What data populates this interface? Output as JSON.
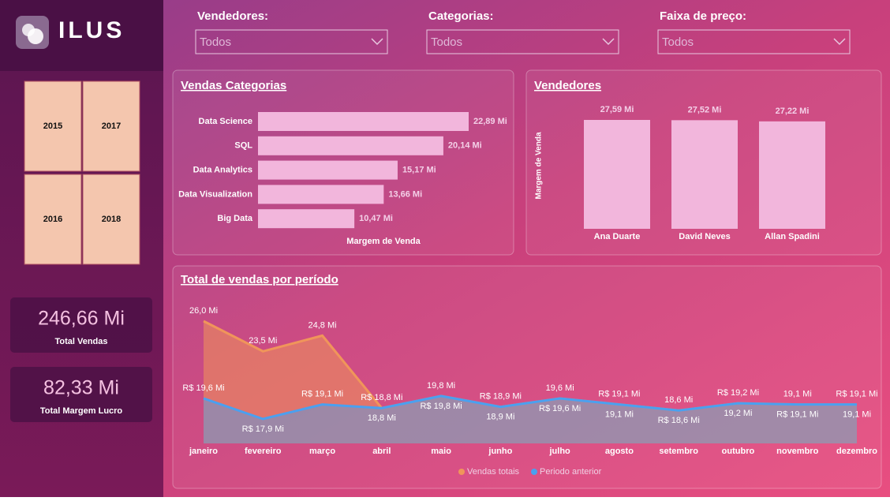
{
  "brand": "ILUS",
  "filters": [
    {
      "label": "Vendedores:",
      "value": "Todos"
    },
    {
      "label": "Categorias:",
      "value": "Todos"
    },
    {
      "label": "Faixa de preço:",
      "value": "Todos"
    }
  ],
  "years": [
    "2015",
    "2017",
    "2016",
    "2018"
  ],
  "kpis": [
    {
      "value": "246,66 Mi",
      "label": "Total Vendas"
    },
    {
      "value": "82,33 Mi",
      "label": "Total Margem Lucro"
    }
  ],
  "chart_data": [
    {
      "type": "hbar",
      "title": "Vendas Categorias",
      "x_label": "Margem de Venda",
      "color": "#f2b6dc",
      "categories": [
        "Data Science",
        "SQL",
        "Data Analytics",
        "Data Visualization",
        "Big Data"
      ],
      "values": [
        22.89,
        20.14,
        15.17,
        13.66,
        10.47
      ],
      "value_labels": [
        "22,89 Mi",
        "20,14 Mi",
        "15,17 Mi",
        "13,66 Mi",
        "10,47 Mi"
      ]
    },
    {
      "type": "bar",
      "title": "Vendedores",
      "y_label": "Margem de Venda",
      "color": "#f2b6dc",
      "categories": [
        "Ana Duarte",
        "David Neves",
        "Allan Spadini"
      ],
      "values": [
        27.59,
        27.52,
        27.22
      ],
      "value_labels": [
        "27,59 Mi",
        "27,52 Mi",
        "27,22 Mi"
      ]
    },
    {
      "type": "area",
      "title": "Total de vendas por período",
      "categories": [
        "janeiro",
        "fevereiro",
        "março",
        "abril",
        "maio",
        "junho",
        "julho",
        "agosto",
        "setembro",
        "outubro",
        "novembro",
        "dezembro"
      ],
      "series": [
        {
          "name": "Vendas totais",
          "color": "#f0955a",
          "values": [
            26.0,
            23.5,
            24.8,
            18.8,
            19.8,
            18.9,
            19.6,
            19.1,
            18.6,
            19.2,
            19.1,
            19.1
          ],
          "value_labels": [
            "26,0 Mi",
            "23,5 Mi",
            "24,8 Mi",
            "18,8 Mi",
            "19,8 Mi",
            "18,9 Mi",
            "19,6 Mi",
            "19,1 Mi",
            "18,6 Mi",
            "19,2 Mi",
            "19,1 Mi",
            "19,1 Mi"
          ]
        },
        {
          "name": "Periodo anterior",
          "color": "#4aa0f0",
          "values": [
            19.6,
            17.9,
            19.1,
            18.8,
            19.8,
            18.9,
            19.6,
            19.1,
            18.6,
            19.2,
            19.1,
            19.1
          ],
          "value_labels": [
            "R$ 19,6 Mi",
            "R$ 17,9 Mi",
            "R$ 19,1 Mi",
            "R$ 18,8 Mi",
            "R$ 19,8 Mi",
            "R$ 18,9 Mi",
            "R$ 19,6 Mi",
            "R$ 19,1 Mi",
            "R$ 18,6 Mi",
            "R$ 19,2 Mi",
            "R$ 19,1 Mi",
            "R$ 19,1 Mi"
          ]
        }
      ]
    }
  ]
}
